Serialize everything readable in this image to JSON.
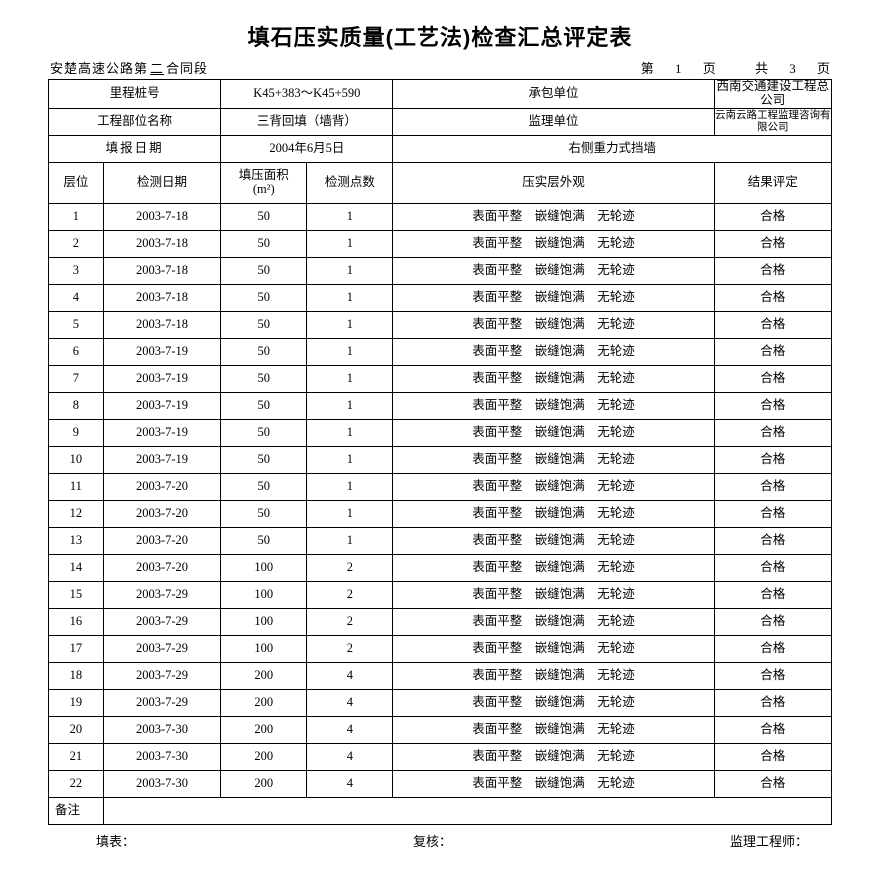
{
  "title": "填石压实质量(工艺法)检查汇总评定表",
  "subheader": {
    "left_prefix": "安楚高速公路第",
    "left_blank": "二",
    "left_suffix": "合同段",
    "page_label_pre": "第",
    "page_current": "1",
    "page_label_mid": "页",
    "page_total_pre": "共",
    "page_total": "3",
    "page_label_end": "页"
  },
  "header_rows": [
    {
      "c1": "里程桩号",
      "c2": "K45+383～K45+590",
      "c3": "承包单位",
      "c4": "西南交通建设工程总公司"
    },
    {
      "c1": "工程部位名称",
      "c2": "三背回填（墙背）",
      "c3": "监理单位",
      "c4": "云南云路工程监理咨询有限公司",
      "c4_small": true
    },
    {
      "c1": "填报日期",
      "c2": "2004年6月5日",
      "c34": "右侧重力式挡墙"
    }
  ],
  "columns": {
    "c1": "层位",
    "c2": "检测日期",
    "c3_l1": "填压面积",
    "c3_l2": "(m²)",
    "c4": "检测点数",
    "c5": "压实层外观",
    "c6": "结果评定"
  },
  "rows": [
    {
      "n": "1",
      "date": "2003-7-18",
      "area": "50",
      "pts": "1",
      "desc": "表面平整 嵌缝饱满 无轮迹",
      "res": "合格"
    },
    {
      "n": "2",
      "date": "2003-7-18",
      "area": "50",
      "pts": "1",
      "desc": "表面平整 嵌缝饱满 无轮迹",
      "res": "合格"
    },
    {
      "n": "3",
      "date": "2003-7-18",
      "area": "50",
      "pts": "1",
      "desc": "表面平整 嵌缝饱满 无轮迹",
      "res": "合格"
    },
    {
      "n": "4",
      "date": "2003-7-18",
      "area": "50",
      "pts": "1",
      "desc": "表面平整 嵌缝饱满 无轮迹",
      "res": "合格"
    },
    {
      "n": "5",
      "date": "2003-7-18",
      "area": "50",
      "pts": "1",
      "desc": "表面平整 嵌缝饱满 无轮迹",
      "res": "合格"
    },
    {
      "n": "6",
      "date": "2003-7-19",
      "area": "50",
      "pts": "1",
      "desc": "表面平整 嵌缝饱满 无轮迹",
      "res": "合格"
    },
    {
      "n": "7",
      "date": "2003-7-19",
      "area": "50",
      "pts": "1",
      "desc": "表面平整 嵌缝饱满 无轮迹",
      "res": "合格"
    },
    {
      "n": "8",
      "date": "2003-7-19",
      "area": "50",
      "pts": "1",
      "desc": "表面平整 嵌缝饱满 无轮迹",
      "res": "合格"
    },
    {
      "n": "9",
      "date": "2003-7-19",
      "area": "50",
      "pts": "1",
      "desc": "表面平整 嵌缝饱满 无轮迹",
      "res": "合格"
    },
    {
      "n": "10",
      "date": "2003-7-19",
      "area": "50",
      "pts": "1",
      "desc": "表面平整 嵌缝饱满 无轮迹",
      "res": "合格"
    },
    {
      "n": "11",
      "date": "2003-7-20",
      "area": "50",
      "pts": "1",
      "desc": "表面平整 嵌缝饱满 无轮迹",
      "res": "合格"
    },
    {
      "n": "12",
      "date": "2003-7-20",
      "area": "50",
      "pts": "1",
      "desc": "表面平整 嵌缝饱满 无轮迹",
      "res": "合格"
    },
    {
      "n": "13",
      "date": "2003-7-20",
      "area": "50",
      "pts": "1",
      "desc": "表面平整 嵌缝饱满 无轮迹",
      "res": "合格"
    },
    {
      "n": "14",
      "date": "2003-7-20",
      "area": "100",
      "pts": "2",
      "desc": "表面平整 嵌缝饱满 无轮迹",
      "res": "合格"
    },
    {
      "n": "15",
      "date": "2003-7-29",
      "area": "100",
      "pts": "2",
      "desc": "表面平整 嵌缝饱满 无轮迹",
      "res": "合格"
    },
    {
      "n": "16",
      "date": "2003-7-29",
      "area": "100",
      "pts": "2",
      "desc": "表面平整 嵌缝饱满 无轮迹",
      "res": "合格"
    },
    {
      "n": "17",
      "date": "2003-7-29",
      "area": "100",
      "pts": "2",
      "desc": "表面平整 嵌缝饱满 无轮迹",
      "res": "合格"
    },
    {
      "n": "18",
      "date": "2003-7-29",
      "area": "200",
      "pts": "4",
      "desc": "表面平整 嵌缝饱满 无轮迹",
      "res": "合格"
    },
    {
      "n": "19",
      "date": "2003-7-29",
      "area": "200",
      "pts": "4",
      "desc": "表面平整 嵌缝饱满 无轮迹",
      "res": "合格"
    },
    {
      "n": "20",
      "date": "2003-7-30",
      "area": "200",
      "pts": "4",
      "desc": "表面平整 嵌缝饱满 无轮迹",
      "res": "合格"
    },
    {
      "n": "21",
      "date": "2003-7-30",
      "area": "200",
      "pts": "4",
      "desc": "表面平整 嵌缝饱满 无轮迹",
      "res": "合格"
    },
    {
      "n": "22",
      "date": "2003-7-30",
      "area": "200",
      "pts": "4",
      "desc": "表面平整 嵌缝饱满 无轮迹",
      "res": "合格"
    }
  ],
  "remark_label": "备注",
  "footer": {
    "fill": "填表：",
    "review": "复核：",
    "supervisor": "监理工程师："
  },
  "colors": {
    "text": "#000000",
    "border": "#000000",
    "background": "#ffffff"
  },
  "col_widths_pct": [
    7,
    15,
    11,
    11,
    11,
    30,
    15
  ]
}
